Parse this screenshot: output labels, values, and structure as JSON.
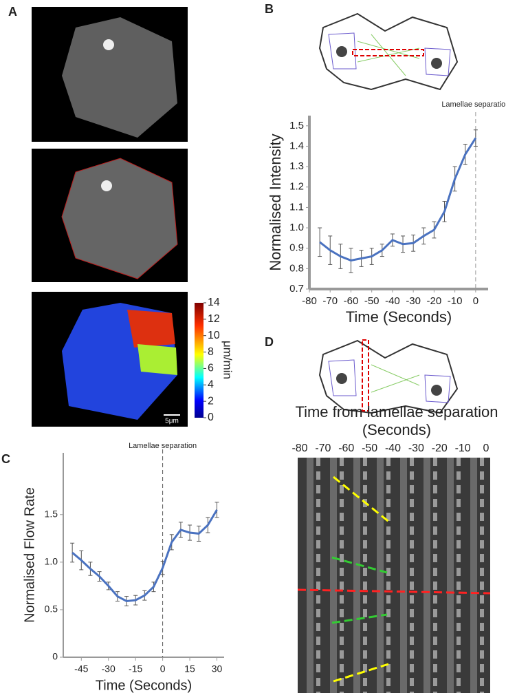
{
  "panels": [
    "A",
    "B",
    "C",
    "D"
  ],
  "colorbar": {
    "label": "μm/min",
    "ticks": [
      0,
      2,
      4,
      6,
      8,
      10,
      12,
      14
    ]
  },
  "scale_bar": "5μm",
  "kymograph": {
    "title": [
      "Time from lamellae separation",
      "(Seconds)"
    ],
    "ticks": [
      -80,
      -70,
      -60,
      -50,
      -40,
      -30,
      -20,
      -10,
      0
    ]
  },
  "chart_data": [
    {
      "type": "line",
      "annotation": "Lamellae separation",
      "xlabel": "Time (Seconds)",
      "ylabel": "Normalised Intensity",
      "x": [
        -75,
        -70,
        -65,
        -60,
        -55,
        -50,
        -45,
        -40,
        -35,
        -30,
        -25,
        -20,
        -15,
        -10,
        -5,
        0
      ],
      "values": [
        0.93,
        0.89,
        0.86,
        0.84,
        0.85,
        0.86,
        0.89,
        0.94,
        0.92,
        0.925,
        0.96,
        0.99,
        1.08,
        1.24,
        1.36,
        1.44
      ],
      "errors": [
        0.07,
        0.07,
        0.06,
        0.06,
        0.04,
        0.04,
        0.03,
        0.03,
        0.04,
        0.04,
        0.04,
        0.04,
        0.05,
        0.06,
        0.05,
        0.04
      ],
      "color": "#4a72c0",
      "xlim": [
        -80,
        6
      ],
      "ylim": [
        0.7,
        1.55
      ],
      "xticks": [
        -80,
        -70,
        -60,
        -50,
        -40,
        -30,
        -20,
        -10,
        0
      ],
      "yticks": [
        0.7,
        0.8,
        0.9,
        {
          "value": 1,
          "label": "1.0"
        },
        1.1,
        1.2,
        1.3,
        1.4,
        1.5
      ]
    },
    {
      "type": "line",
      "annotation": "Lamellae separation",
      "xlabel": "Time (Seconds)",
      "ylabel": "Normalised Flow Rate",
      "x": [
        -50,
        -45,
        -40,
        -35,
        -30,
        -25,
        -20,
        -15,
        -10,
        -5,
        0,
        5,
        10,
        15,
        20,
        25,
        30
      ],
      "values": [
        1.1,
        1.02,
        0.93,
        0.85,
        0.75,
        0.64,
        0.59,
        0.6,
        0.65,
        0.74,
        0.94,
        1.21,
        1.34,
        1.31,
        1.3,
        1.39,
        1.55
      ],
      "errors": [
        0.1,
        0.1,
        0.07,
        0.05,
        0.04,
        0.05,
        0.05,
        0.05,
        0.05,
        0.05,
        0.07,
        0.08,
        0.08,
        0.08,
        0.08,
        0.08,
        0.08
      ],
      "color": "#4a72c0",
      "xlim": [
        -55,
        34
      ],
      "ylim": [
        0,
        2.15
      ],
      "xticks": [
        -45,
        -30,
        -15,
        0,
        15,
        30
      ],
      "yticks": [
        0,
        0.5,
        {
          "value": 1,
          "label": "1.0"
        },
        1.5
      ]
    }
  ]
}
